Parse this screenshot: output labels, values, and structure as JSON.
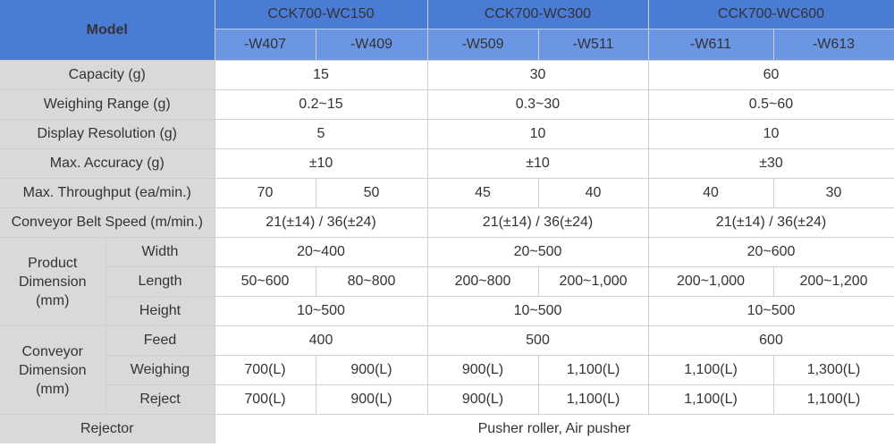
{
  "header": {
    "model_label": "Model",
    "groups": [
      "CCK700-WC150",
      "CCK700-WC300",
      "CCK700-WC600"
    ],
    "submodels": [
      "-W407",
      "-W409",
      "-W509",
      "-W511",
      "-W611",
      "-W613"
    ]
  },
  "rows": {
    "capacity": {
      "label": "Capacity (g)",
      "values": [
        "15",
        "30",
        "60"
      ]
    },
    "weighing_range": {
      "label": "Weighing Range (g)",
      "values": [
        "0.2~15",
        "0.3~30",
        "0.5~60"
      ]
    },
    "display_resolution": {
      "label": "Display Resolution (g)",
      "values": [
        "5",
        "10",
        "10"
      ]
    },
    "max_accuracy": {
      "label": "Max. Accuracy (g)",
      "values": [
        "±10",
        "±10",
        "±30"
      ]
    },
    "max_throughput": {
      "label": "Max. Throughput (ea/min.)",
      "values": [
        "70",
        "50",
        "45",
        "40",
        "40",
        "30"
      ]
    },
    "belt_speed": {
      "label": "Conveyor Belt Speed (m/min.)",
      "values": [
        "21(±14) / 36(±24)",
        "21(±14) / 36(±24)",
        "21(±14) / 36(±24)"
      ]
    },
    "product_dimension": {
      "group_label": [
        "Product",
        "Dimension",
        "(mm)"
      ],
      "width": {
        "label": "Width",
        "values": [
          "20~400",
          "20~500",
          "20~600"
        ]
      },
      "length": {
        "label": "Length",
        "values": [
          "50~600",
          "80~800",
          "200~800",
          "200~1,000",
          "200~1,000",
          "200~1,200"
        ]
      },
      "height": {
        "label": "Height",
        "values": [
          "10~500",
          "10~500",
          "10~500"
        ]
      }
    },
    "conveyor_dimension": {
      "group_label": [
        "Conveyor",
        "Dimension",
        "(mm)"
      ],
      "feed": {
        "label": "Feed",
        "values": [
          "400",
          "500",
          "600"
        ]
      },
      "weighing": {
        "label": "Weighing",
        "values": [
          "700(L)",
          "900(L)",
          "900(L)",
          "1,100(L)",
          "1,100(L)",
          "1,300(L)"
        ]
      },
      "reject": {
        "label": "Reject",
        "values": [
          "700(L)",
          "900(L)",
          "900(L)",
          "1,100(L)",
          "1,100(L)",
          "1,100(L)"
        ]
      }
    },
    "rejector": {
      "label": "Rejector",
      "value": "Pusher roller, Air pusher"
    }
  }
}
